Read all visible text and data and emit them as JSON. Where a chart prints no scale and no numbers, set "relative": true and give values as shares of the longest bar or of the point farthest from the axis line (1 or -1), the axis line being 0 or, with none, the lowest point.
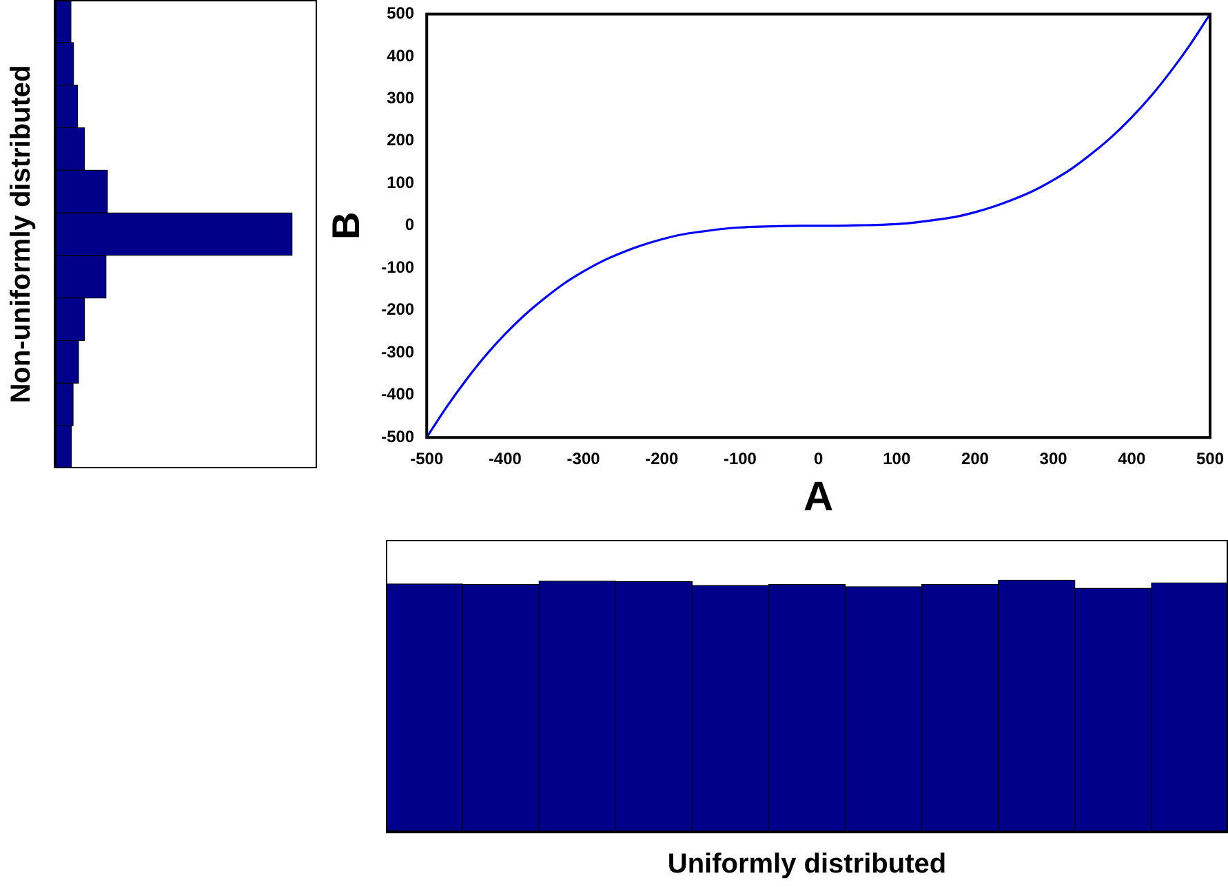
{
  "chart_data": [
    {
      "type": "bar",
      "orientation": "horizontal",
      "relative": true,
      "ylabel": "Non-uniformly distributed",
      "categories": [
        null,
        null,
        null,
        null,
        null,
        null,
        null,
        null,
        null,
        null,
        null
      ],
      "values": [
        0.067,
        0.078,
        0.095,
        0.124,
        0.221,
        1,
        0.215,
        0.124,
        0.099,
        0.076,
        0.069
      ],
      "color": "#00008b"
    },
    {
      "type": "line",
      "xlabel": "A",
      "ylabel": "B",
      "color": "#0000ff",
      "x": [
        -500,
        -475,
        -450,
        -425,
        -400,
        -375,
        -350,
        -325,
        -300,
        -275,
        -250,
        -225,
        -200,
        -175,
        -150,
        -125,
        -100,
        -75,
        -50,
        -25,
        0,
        25,
        50,
        75,
        100,
        125,
        150,
        175,
        200,
        225,
        250,
        275,
        300,
        325,
        350,
        375,
        400,
        425,
        450,
        475,
        500
      ],
      "values": [
        -500,
        -429,
        -365,
        -307,
        -256,
        -211,
        -172,
        -137,
        -108,
        -83,
        -63,
        -46,
        -32,
        -21,
        -14,
        -8,
        -4,
        -2,
        -1,
        0,
        0,
        0,
        1,
        2,
        4,
        8,
        14,
        21,
        32,
        46,
        63,
        83,
        108,
        137,
        172,
        211,
        256,
        307,
        365,
        429,
        500
      ],
      "xlim": [
        -500,
        500
      ],
      "xticks": [
        -500,
        -400,
        -300,
        -200,
        -100,
        0,
        100,
        200,
        300,
        400,
        500
      ],
      "ylim": [
        -500,
        500
      ],
      "yticks": [
        -500,
        -400,
        -300,
        -200,
        -100,
        0,
        100,
        200,
        300,
        400,
        500
      ]
    },
    {
      "type": "bar",
      "relative": true,
      "xlabel": "Uniformly distributed",
      "categories": [
        null,
        null,
        null,
        null,
        null,
        null,
        null,
        null,
        null,
        null,
        null
      ],
      "values": [
        0.985,
        0.983,
        0.996,
        0.994,
        0.979,
        0.983,
        0.974,
        0.983,
        1,
        0.968,
        0.989
      ],
      "color": "#00008b"
    }
  ]
}
